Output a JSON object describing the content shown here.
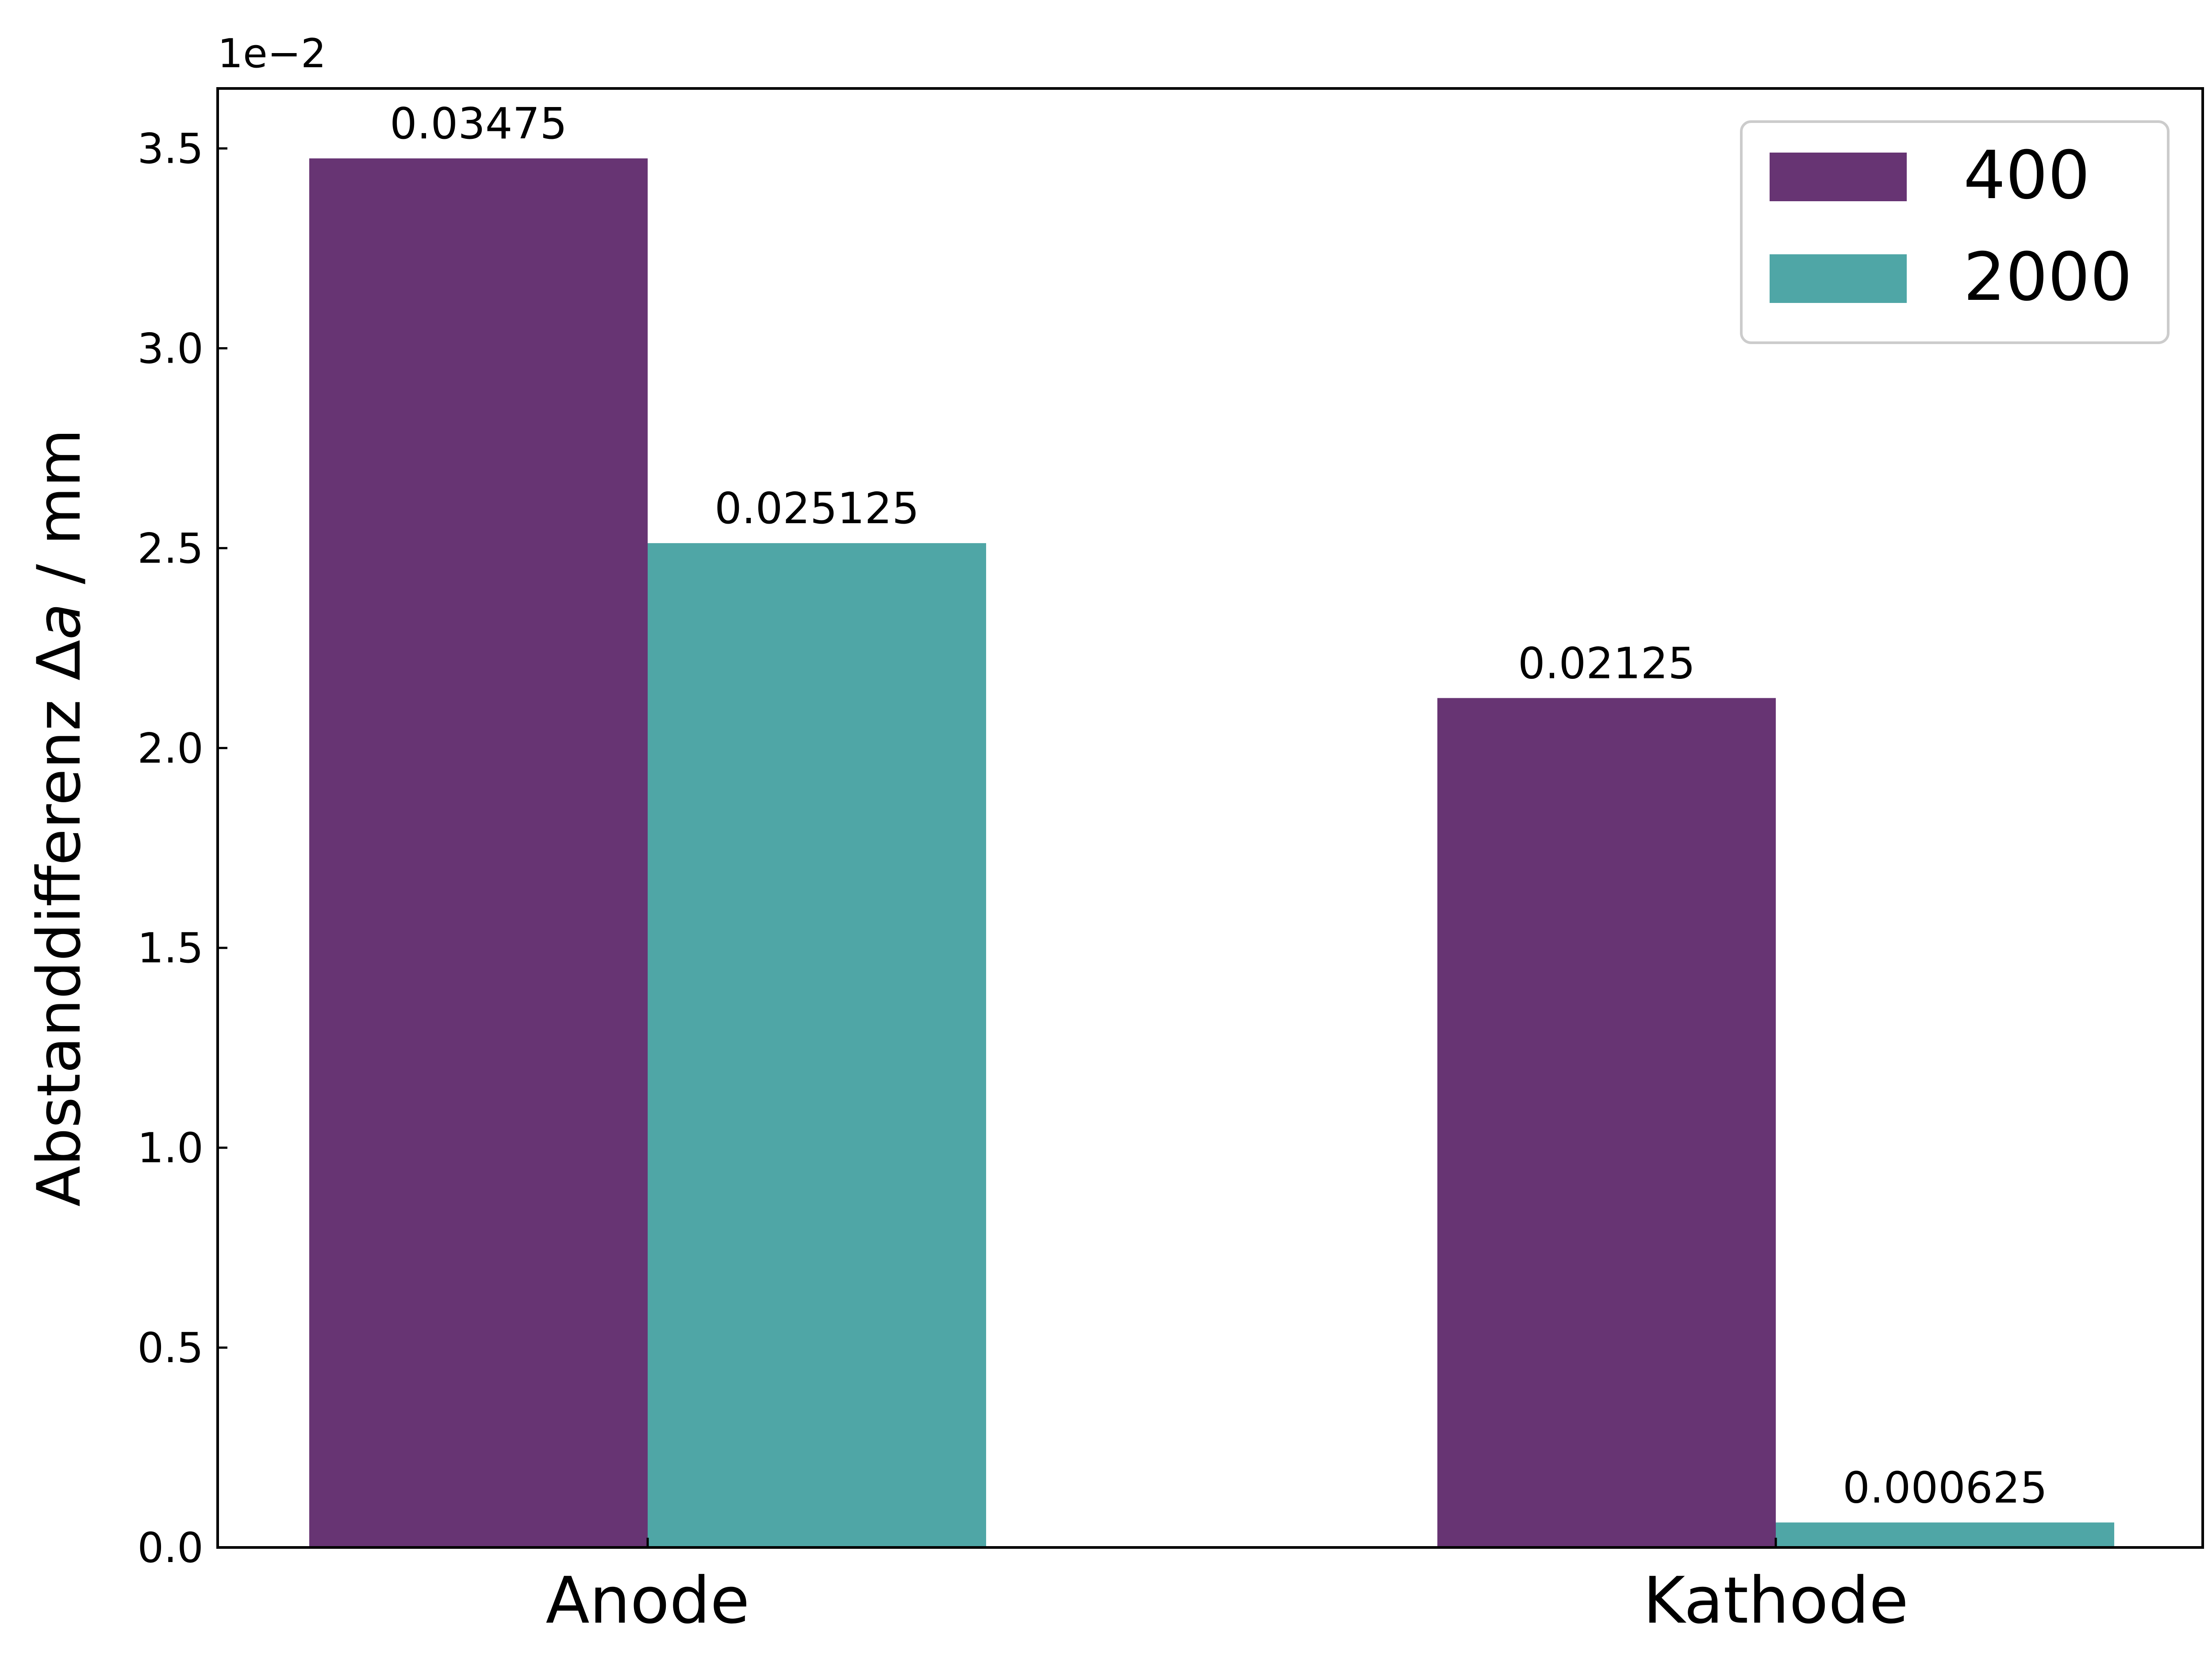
{
  "chart_data": {
    "type": "bar",
    "title": "",
    "xlabel": "",
    "ylabel": "Abstanddifferenz Δa / mm",
    "ylabel_parts": {
      "prefix": "Abstanddifferenz Δ",
      "italic": "a",
      "suffix": " / mm"
    },
    "y_offset_label": "1e−2",
    "ylim": [
      0,
      0.0365
    ],
    "y_ticks": [
      0.0,
      0.005,
      0.01,
      0.015,
      0.02,
      0.025,
      0.03,
      0.035
    ],
    "y_tick_labels": [
      "0.0",
      "0.5",
      "1.0",
      "1.5",
      "2.0",
      "2.5",
      "3.0",
      "3.5"
    ],
    "categories": [
      "Anode",
      "Kathode"
    ],
    "series": [
      {
        "name": "400",
        "color": "#673473",
        "values": [
          0.03475,
          0.02125
        ],
        "value_labels": [
          "0.03475",
          "0.02125"
        ]
      },
      {
        "name": "2000",
        "color": "#4fa6a6",
        "values": [
          0.025125,
          0.000625
        ],
        "value_labels": [
          "0.025125",
          "0.000625"
        ]
      }
    ],
    "legend": {
      "position": "top-right"
    },
    "grid": false,
    "tick_direction": "in"
  }
}
